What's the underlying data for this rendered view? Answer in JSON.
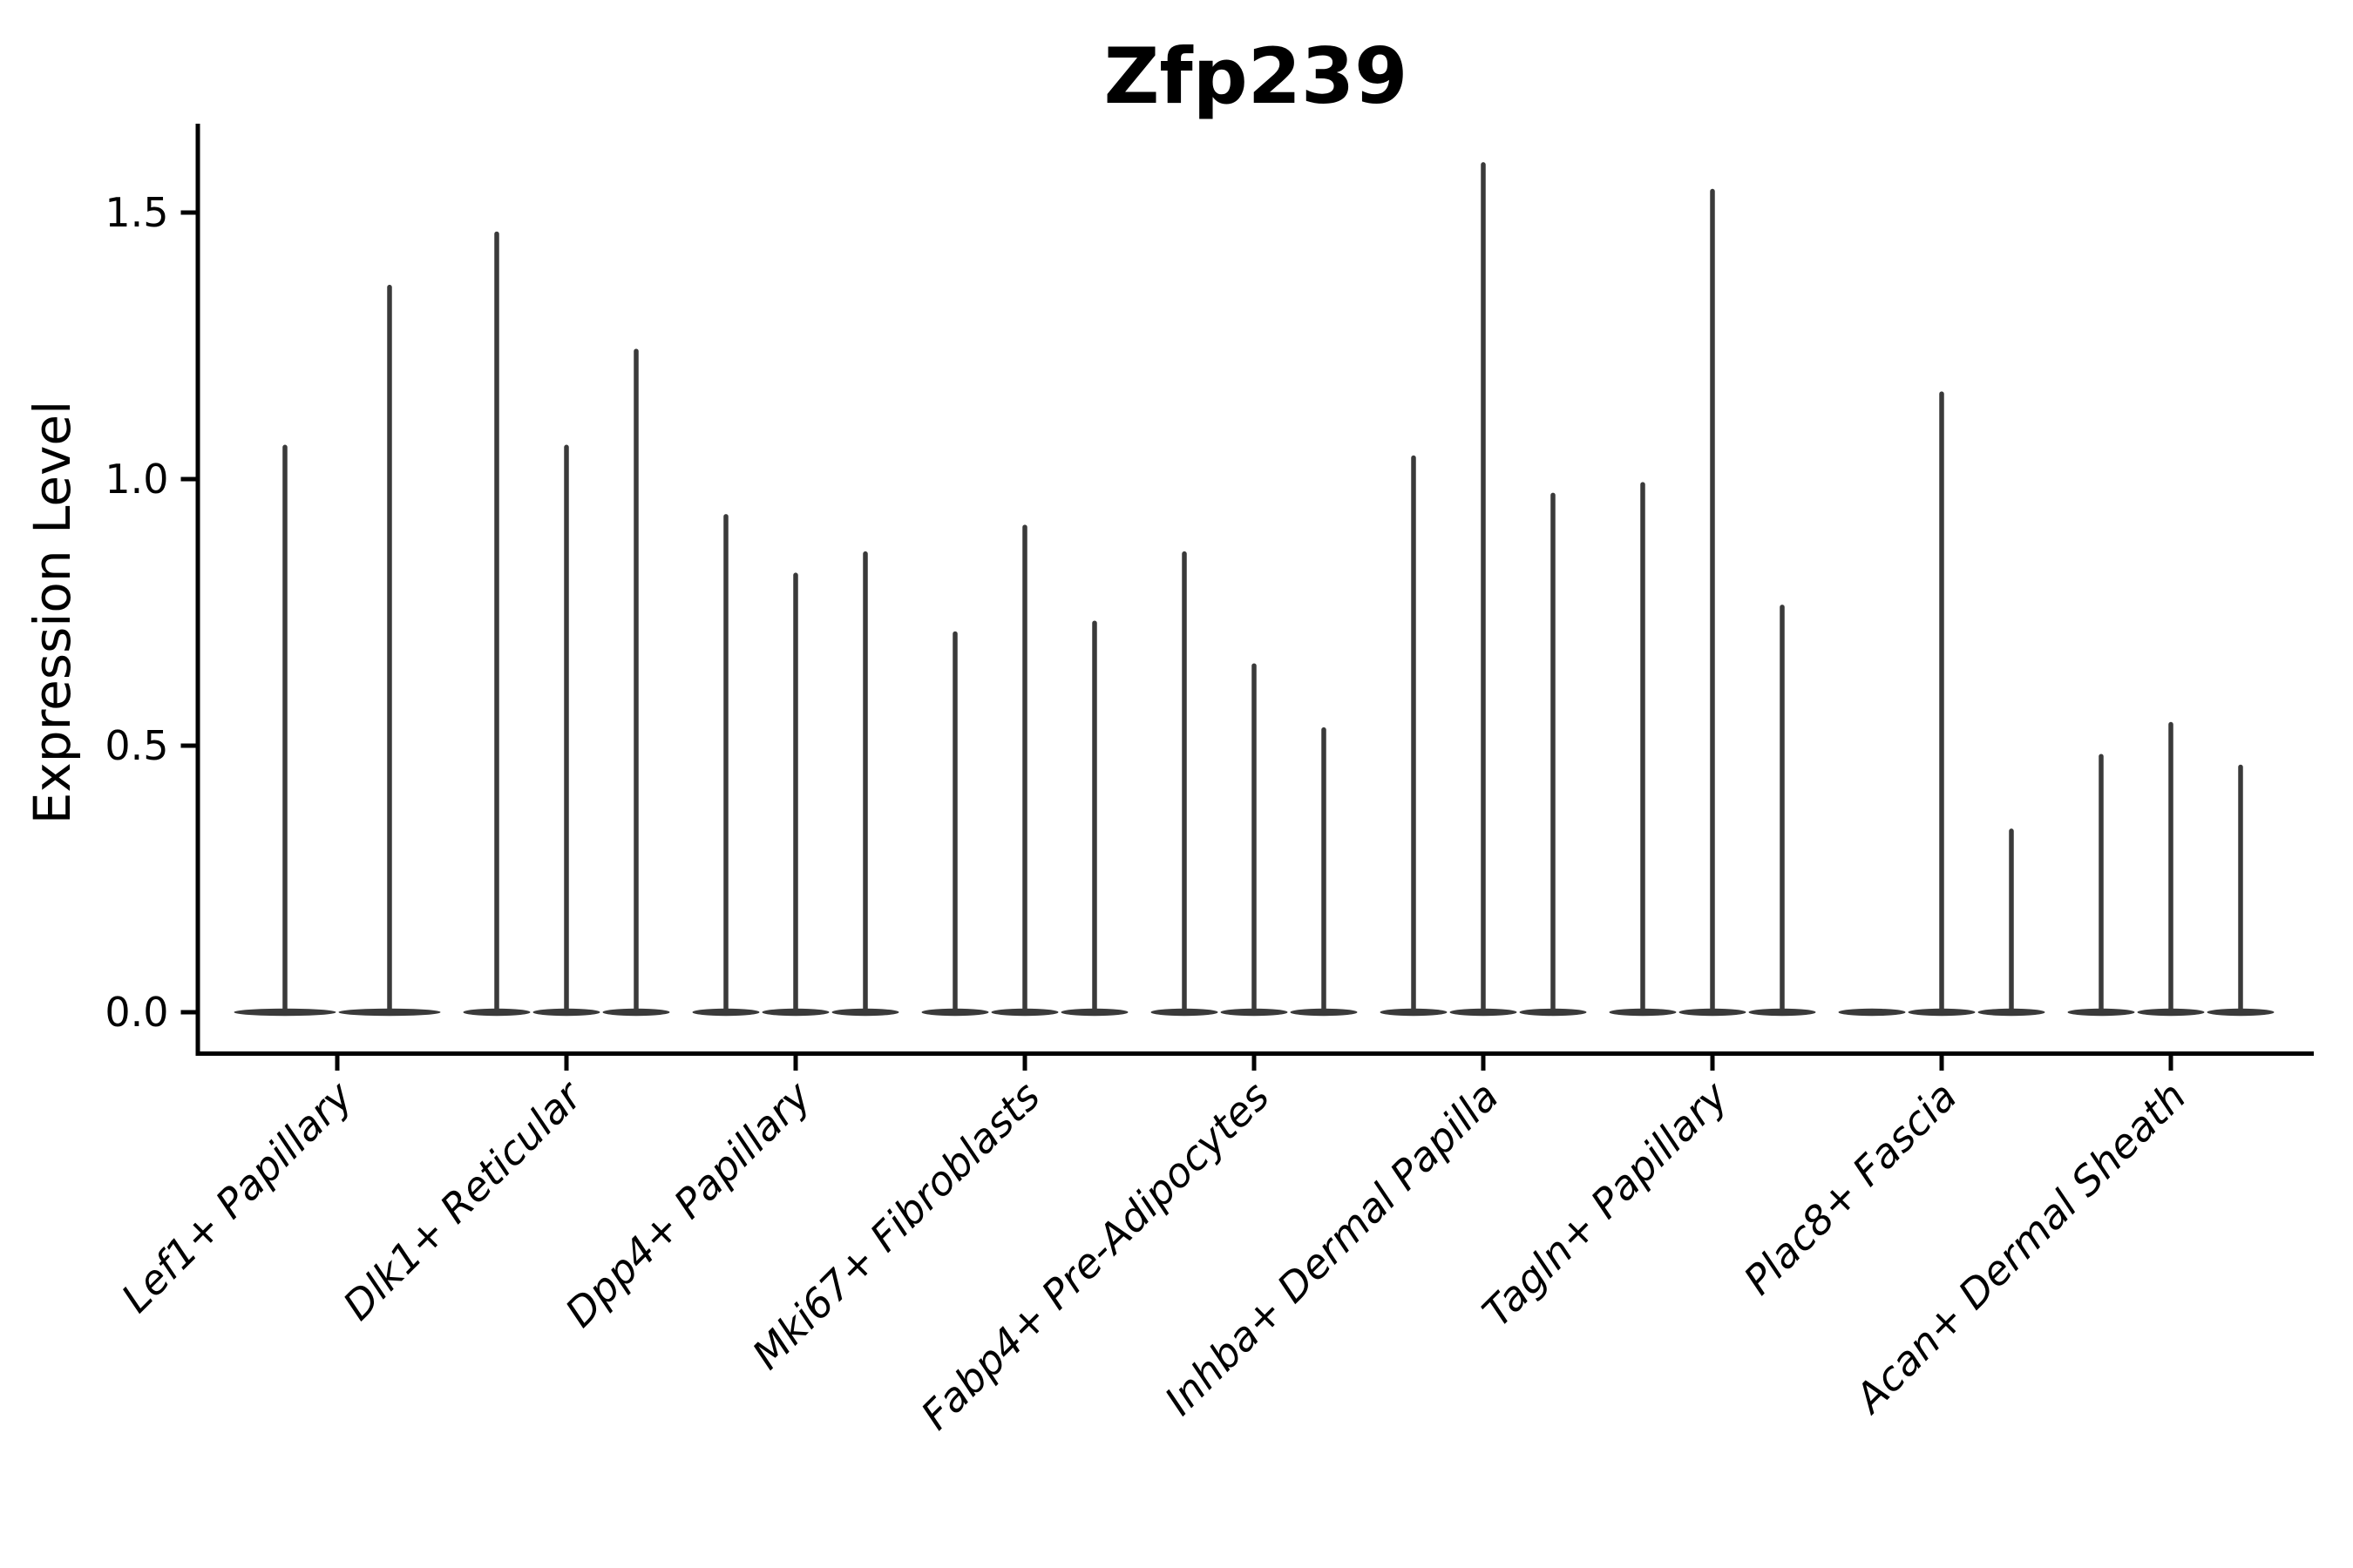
{
  "chart_data": {
    "type": "violin",
    "title": "Zfp239",
    "ylabel": "Expression Level",
    "ylim": [
      0,
      1.67
    ],
    "yticks": [
      0.0,
      0.5,
      1.0,
      1.5
    ],
    "ytick_labels": [
      "0.0",
      "0.5",
      "1.0",
      "1.5"
    ],
    "grid": false,
    "legend": "none",
    "x_label_rotation_deg": 45,
    "categories": [
      "Lef1+ Papillary",
      "Dlk1+ Reticular",
      "Dpp4+ Papillary",
      "Mki67+ Fibroblasts",
      "Fabp4+ Pre-Adipocytes",
      "Inhba+ Dermal Papilla",
      "Tagln+ Papillary",
      "Plac8+ Fascia",
      "Acan+ Dermal Sheath"
    ],
    "series": [
      {
        "category": "Lef1+ Papillary",
        "violin_max_values": [
          1.06,
          1.36
        ]
      },
      {
        "category": "Dlk1+ Reticular",
        "violin_max_values": [
          1.46,
          1.06,
          1.24
        ]
      },
      {
        "category": "Dpp4+ Papillary",
        "violin_max_values": [
          0.93,
          0.82,
          0.86
        ]
      },
      {
        "category": "Mki67+ Fibroblasts",
        "violin_max_values": [
          0.71,
          0.91,
          0.73
        ]
      },
      {
        "category": "Fabp4+ Pre-Adipocytes",
        "violin_max_values": [
          0.86,
          0.65,
          0.53
        ]
      },
      {
        "category": "Inhba+ Dermal Papilla",
        "violin_max_values": [
          1.04,
          1.59,
          0.97
        ]
      },
      {
        "category": "Tagln+ Papillary",
        "violin_max_values": [
          0.99,
          1.54,
          0.76
        ]
      },
      {
        "category": "Plac8+ Fascia",
        "violin_max_values": [
          0.0,
          1.16,
          0.34
        ]
      },
      {
        "category": "Acan+ Dermal Sheath",
        "violin_max_values": [
          0.48,
          0.54,
          0.46
        ]
      }
    ]
  },
  "style": {
    "violin_color": "#3a3a3a",
    "axis_color": "#000000",
    "text_color": "#000000",
    "background": "#ffffff"
  }
}
